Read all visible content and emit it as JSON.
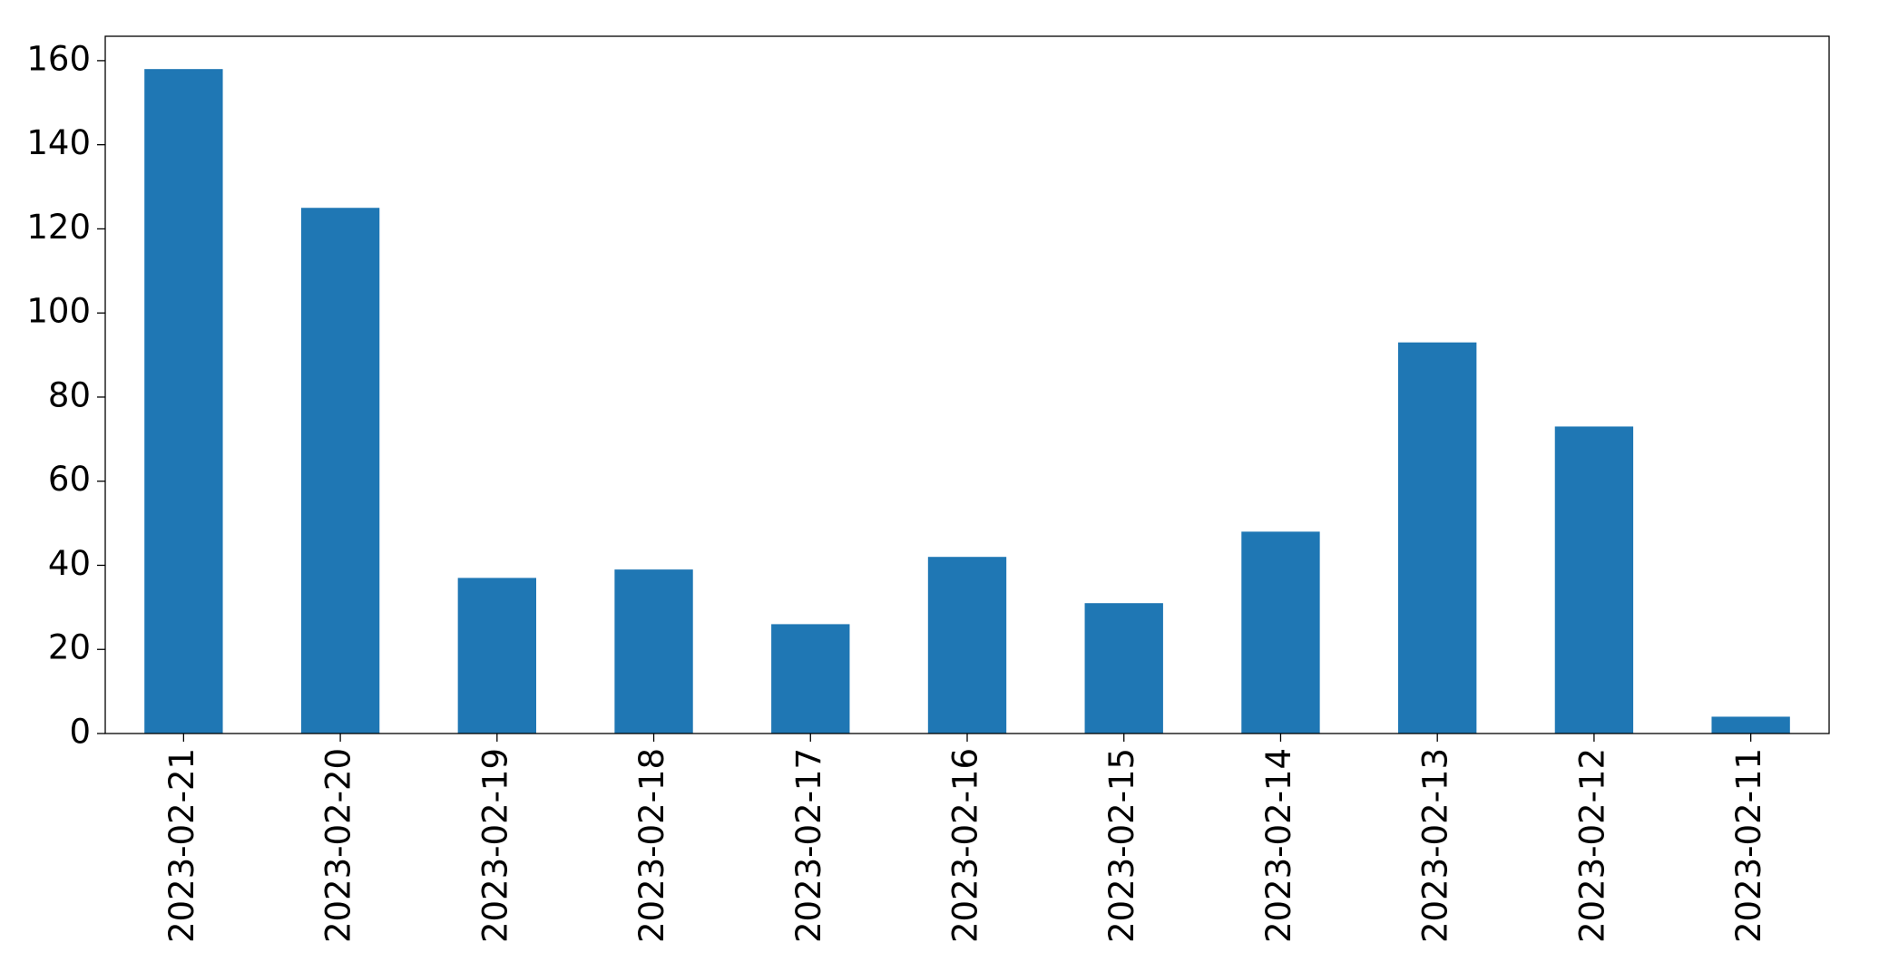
{
  "chart_data": {
    "type": "bar",
    "categories": [
      "2023-02-21",
      "2023-02-20",
      "2023-02-19",
      "2023-02-18",
      "2023-02-17",
      "2023-02-16",
      "2023-02-15",
      "2023-02-14",
      "2023-02-13",
      "2023-02-12",
      "2023-02-11"
    ],
    "values": [
      158,
      125,
      37,
      39,
      26,
      42,
      31,
      48,
      93,
      73,
      4
    ],
    "color": "#1f77b4",
    "ylim": [
      0,
      165.8
    ],
    "yticks": [
      0,
      20,
      40,
      60,
      80,
      100,
      120,
      140,
      160
    ],
    "grid": false
  }
}
